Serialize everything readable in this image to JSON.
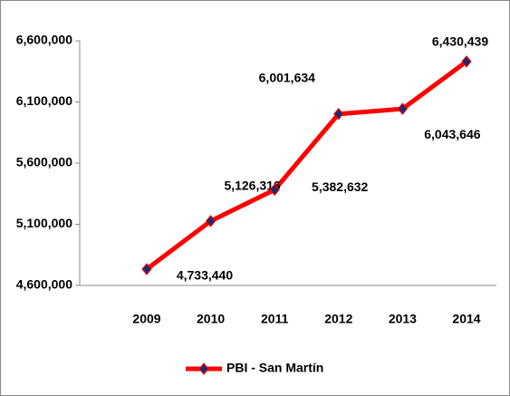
{
  "chart_data": {
    "type": "line",
    "categories": [
      "2009",
      "2010",
      "2011",
      "2012",
      "2013",
      "2014"
    ],
    "series": [
      {
        "name": "PBI - San Martín",
        "color": "#ff0000",
        "marker_color": "#1f2a6b",
        "values": [
          4733440,
          5126316,
          5382632,
          6001634,
          6043646,
          6430439
        ],
        "value_labels": [
          "4,733,440",
          "5,126,316",
          "5,382,632",
          "6,001,634",
          "6,043,646",
          "6,430,439"
        ]
      }
    ],
    "ylim": [
      4600000,
      6600000
    ],
    "yticks": [
      {
        "value": 4600000,
        "label": "4,600,000"
      },
      {
        "value": 5100000,
        "label": "5,100,000"
      },
      {
        "value": 5600000,
        "label": "5,600,000"
      },
      {
        "value": 6100000,
        "label": "6,100,000"
      },
      {
        "value": 6600000,
        "label": "6,600,000"
      }
    ],
    "grid": false,
    "legend": "bottom"
  }
}
